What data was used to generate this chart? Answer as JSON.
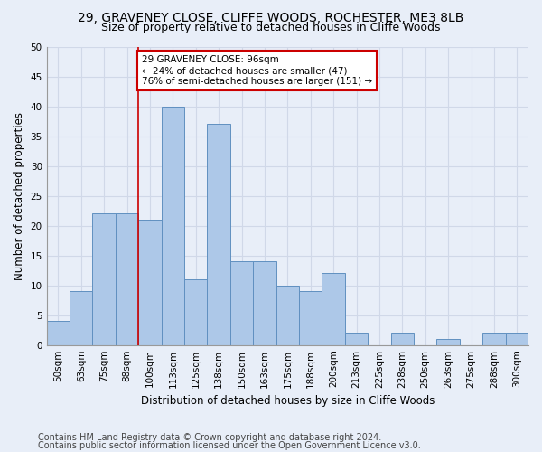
{
  "title1": "29, GRAVENEY CLOSE, CLIFFE WOODS, ROCHESTER, ME3 8LB",
  "title2": "Size of property relative to detached houses in Cliffe Woods",
  "xlabel": "Distribution of detached houses by size in Cliffe Woods",
  "ylabel": "Number of detached properties",
  "bin_labels": [
    "50sqm",
    "63sqm",
    "75sqm",
    "88sqm",
    "100sqm",
    "113sqm",
    "125sqm",
    "138sqm",
    "150sqm",
    "163sqm",
    "175sqm",
    "188sqm",
    "200sqm",
    "213sqm",
    "225sqm",
    "238sqm",
    "250sqm",
    "263sqm",
    "275sqm",
    "288sqm",
    "300sqm"
  ],
  "bar_heights": [
    4,
    9,
    22,
    22,
    21,
    40,
    11,
    37,
    14,
    14,
    10,
    9,
    12,
    2,
    0,
    2,
    0,
    1,
    0,
    2,
    2
  ],
  "bar_color": "#adc8e8",
  "bar_edge_color": "#6090c0",
  "grid_color": "#d0d8e8",
  "bg_color": "#e8eef8",
  "ref_bar_index": 3,
  "annotation_text": "29 GRAVENEY CLOSE: 96sqm\n← 24% of detached houses are smaller (47)\n76% of semi-detached houses are larger (151) →",
  "annotation_box_color": "#ffffff",
  "annotation_box_edge": "#cc0000",
  "ref_line_color": "#cc0000",
  "footer1": "Contains HM Land Registry data © Crown copyright and database right 2024.",
  "footer2": "Contains public sector information licensed under the Open Government Licence v3.0.",
  "ylim": [
    0,
    50
  ],
  "yticks": [
    0,
    5,
    10,
    15,
    20,
    25,
    30,
    35,
    40,
    45,
    50
  ],
  "title1_fontsize": 10,
  "title2_fontsize": 9,
  "xlabel_fontsize": 8.5,
  "ylabel_fontsize": 8.5,
  "tick_fontsize": 7.5,
  "footer_fontsize": 7,
  "ref_line_bar_index": 3
}
